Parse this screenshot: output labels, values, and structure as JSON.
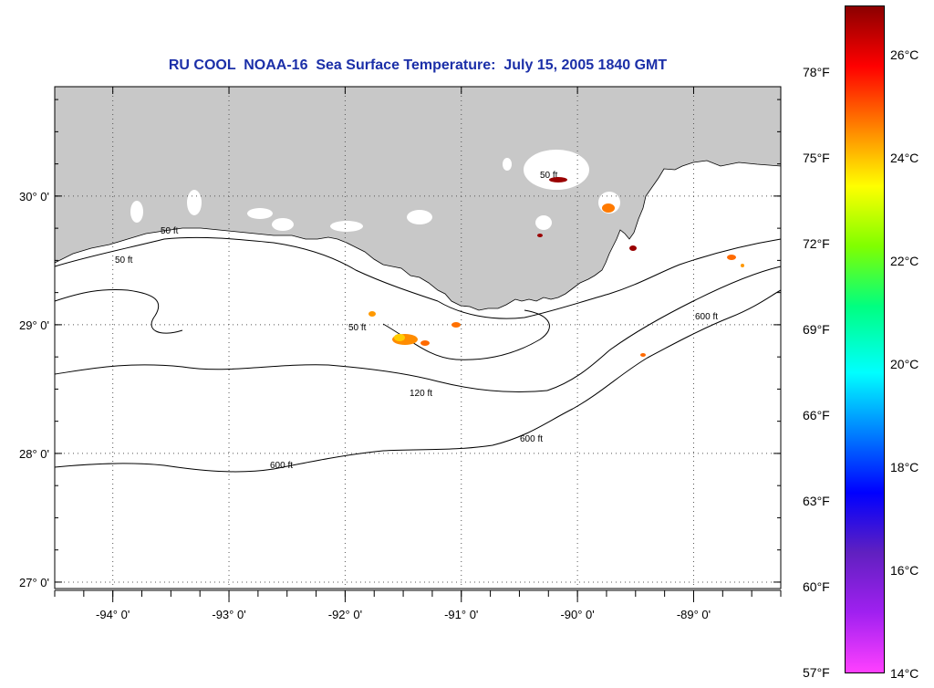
{
  "title": "RU COOL  NOAA-16  Sea Surface Temperature:  July 15, 2005 1840 GMT",
  "map": {
    "lon_range": [
      -94.5,
      -88.25
    ],
    "lat_range": [
      26.95,
      30.85
    ],
    "lat_ticks": [
      {
        "value": 30,
        "label": "30° 0'"
      },
      {
        "value": 29,
        "label": "29° 0'"
      },
      {
        "value": 28,
        "label": "28° 0'"
      },
      {
        "value": 27,
        "label": "27° 0'"
      }
    ],
    "lon_ticks": [
      {
        "value": -94,
        "label": "-94° 0'"
      },
      {
        "value": -93,
        "label": "-93° 0'"
      },
      {
        "value": -92,
        "label": "-92° 0'"
      },
      {
        "value": -91,
        "label": "-91° 0'"
      },
      {
        "value": -90,
        "label": "-90° 0'"
      },
      {
        "value": -89,
        "label": "-89° 0'"
      }
    ],
    "grid": true,
    "land_color": "#c8c8c8",
    "contour_labels": {
      "c50": "50 ft",
      "c120": "120 ft",
      "c600": "600 ft"
    }
  },
  "colorbar": {
    "fahrenheit": [
      "78°F",
      "75°F",
      "72°F",
      "69°F",
      "66°F",
      "63°F",
      "60°F",
      "57°F"
    ],
    "celsius": [
      "26°C",
      "24°C",
      "22°C",
      "20°C",
      "18°C",
      "16°C",
      "14°C"
    ],
    "colors": [
      "#8b0000",
      "#ff0000",
      "#ff8000",
      "#ffff00",
      "#80ff00",
      "#00ff80",
      "#00ffff",
      "#0080ff",
      "#0000ff",
      "#6020c0",
      "#a020f0",
      "#ff40ff"
    ]
  }
}
